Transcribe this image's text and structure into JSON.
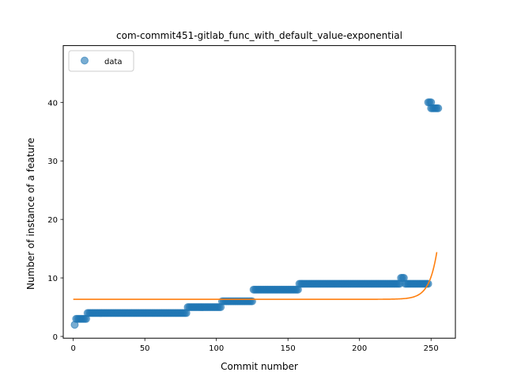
{
  "chart_data": {
    "type": "scatter",
    "title": "com-commit451-gitlab_func_with_default_value-exponential",
    "xlabel": "Commit number",
    "ylabel": "Number of instance of a feature",
    "xlim": [
      -7,
      267
    ],
    "ylim": [
      -0.3,
      49.7
    ],
    "xticks": [
      0,
      50,
      100,
      150,
      200,
      250
    ],
    "yticks": [
      0,
      10,
      20,
      30,
      40
    ],
    "legend": {
      "placement": "upper-left",
      "entries": [
        "data"
      ]
    },
    "colors": {
      "data": "#1f77b4",
      "fit": "#ff7f0e",
      "frame": "#000000"
    },
    "series": [
      {
        "name": "data",
        "kind": "scatter",
        "segments": [
          {
            "x_start": 1,
            "x_end": 1,
            "y": 2
          },
          {
            "x_start": 2,
            "x_end": 9,
            "y": 3
          },
          {
            "x_start": 10,
            "x_end": 79,
            "y": 4
          },
          {
            "x_start": 80,
            "x_end": 103,
            "y": 5
          },
          {
            "x_start": 104,
            "x_end": 125,
            "y": 6
          },
          {
            "x_start": 126,
            "x_end": 157,
            "y": 8
          },
          {
            "x_start": 158,
            "x_end": 228,
            "y": 9
          },
          {
            "x_start": 229,
            "x_end": 231,
            "y": 10
          },
          {
            "x_start": 232,
            "x_end": 248,
            "y": 9
          },
          {
            "x_start": 248,
            "x_end": 250,
            "y": 40
          },
          {
            "x_start": 250,
            "x_end": 255,
            "y": 39
          }
        ]
      },
      {
        "name": "fit",
        "kind": "line",
        "model": "exponential",
        "params": {
          "a": 6.35,
          "b": 3.58e-20,
          "c": 0.1845
        },
        "x_range": [
          0,
          254
        ]
      }
    ]
  }
}
